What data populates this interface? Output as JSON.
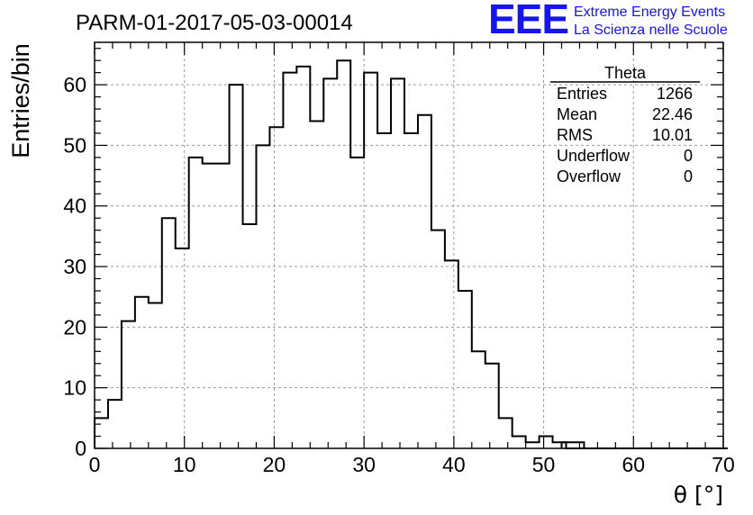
{
  "logo": {
    "mark": "EEE",
    "line1": "Extreme Energy Events",
    "line2": "La Scienza nelle Scuole",
    "color": "#1515ee"
  },
  "chart_data": {
    "type": "bar",
    "title": "PARM-01-2017-05-03-00014",
    "xlabel": "θ [°]",
    "ylabel": "Entries/bin",
    "xlim": [
      0,
      70
    ],
    "ylim": [
      0,
      67
    ],
    "grid": true,
    "x_ticks": [
      0,
      10,
      20,
      30,
      40,
      50,
      60,
      70
    ],
    "y_ticks": [
      0,
      10,
      20,
      30,
      40,
      50,
      60
    ],
    "bin_width": 1.5,
    "values": [
      5,
      8,
      21,
      25,
      24,
      38,
      33,
      48,
      47,
      47,
      60,
      37,
      50,
      53,
      62,
      63,
      54,
      61,
      64,
      48,
      62,
      52,
      61,
      52,
      55,
      36,
      31,
      26,
      16,
      14,
      5,
      2,
      1,
      2,
      1,
      0,
      0,
      0,
      0,
      0,
      0,
      0,
      0,
      0,
      0,
      0,
      0
    ],
    "isolated_bins": [
      {
        "x_low": 52,
        "x_high": 54.5,
        "value": 1
      }
    ],
    "stats_box": {
      "title": "Theta",
      "rows": [
        {
          "label": "Entries",
          "value": "1266"
        },
        {
          "label": "Mean",
          "value": "22.46"
        },
        {
          "label": "RMS",
          "value": "10.01"
        },
        {
          "label": "Underflow",
          "value": "0"
        },
        {
          "label": "Overflow",
          "value": "0"
        }
      ]
    }
  }
}
